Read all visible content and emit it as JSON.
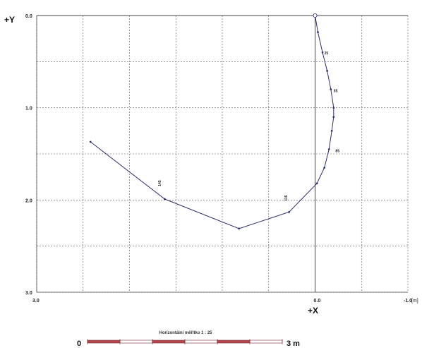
{
  "chart_data": {
    "type": "line",
    "title": "",
    "x_axis_label": "+X",
    "y_axis_label": "+Y",
    "x_unit": "[m]",
    "x_ticks": [
      "3.0",
      "0.0",
      "-1.0"
    ],
    "y_ticks": [
      "0.0",
      "1.0",
      "2.0",
      "3.0"
    ],
    "xlim": [
      3.0,
      -1.0
    ],
    "ylim": [
      0.0,
      3.0
    ],
    "grid": true,
    "x_reversed": true,
    "y_down": true,
    "series": [
      {
        "color": "#2b2f6b",
        "points": [
          [
            0.0,
            0.0
          ],
          [
            -0.03,
            0.18
          ],
          [
            -0.08,
            0.4
          ],
          [
            -0.13,
            0.6
          ],
          [
            -0.17,
            0.8
          ],
          [
            -0.2,
            1.0
          ],
          [
            -0.2,
            1.1
          ],
          [
            -0.18,
            1.25
          ],
          [
            -0.15,
            1.45
          ],
          [
            -0.1,
            1.65
          ],
          [
            -0.02,
            1.82
          ],
          [
            0.28,
            2.13
          ],
          [
            0.82,
            2.31
          ],
          [
            1.62,
            1.99
          ],
          [
            2.42,
            1.37
          ]
        ]
      }
    ],
    "annotations": [
      {
        "text": "25",
        "x": -0.1,
        "y": 0.42
      },
      {
        "text": "55",
        "x": -0.2,
        "y": 0.83
      },
      {
        "text": "85",
        "x": -0.22,
        "y": 1.48
      },
      {
        "text": "115",
        "x": 0.3,
        "y": 2.01,
        "rotate": true
      },
      {
        "text": "145",
        "x": 1.66,
        "y": 1.85,
        "rotate": true
      }
    ]
  },
  "scale_bar": {
    "title": "Horizontální měřítko 1 : 25",
    "start_label": "0",
    "end_label": "3 m",
    "segments": 6
  }
}
